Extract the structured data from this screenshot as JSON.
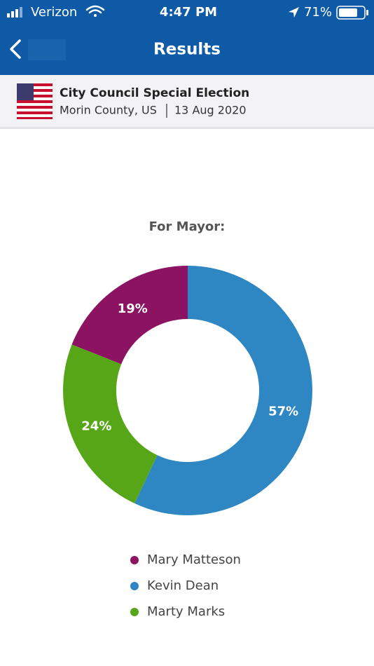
{
  "status_bar": {
    "carrier": "Verizon",
    "time": "4:47 PM",
    "battery": "71%"
  },
  "nav": {
    "title": "Results"
  },
  "header": {
    "title": "City Council Special Election",
    "location": "Morin County, US",
    "date": "13 Aug 2020"
  },
  "chart_data": {
    "type": "donut",
    "title": "For Mayor:",
    "categories": [
      "Mary Matteson",
      "Kevin Dean",
      "Marty Marks"
    ],
    "values": [
      19,
      57,
      24
    ],
    "value_labels": [
      "19%",
      "57%",
      "24%"
    ],
    "colors": [
      "#8c1262",
      "#2e86c3",
      "#56a618"
    ]
  }
}
